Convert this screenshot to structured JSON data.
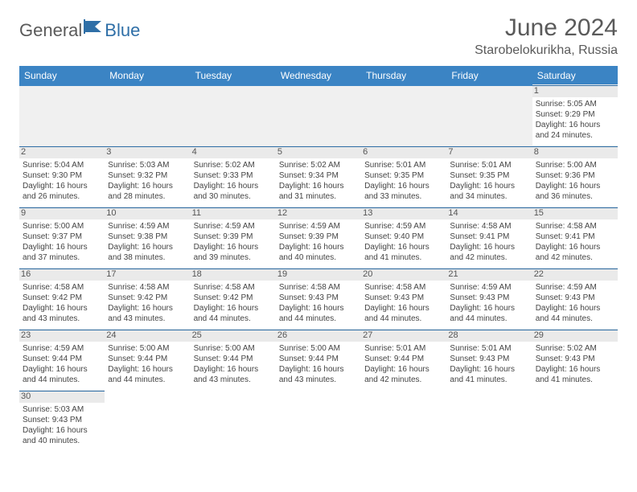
{
  "logo": {
    "text1": "General",
    "text2": "Blue",
    "flag_color": "#2f6fa7"
  },
  "title": "June 2024",
  "location": "Starobelokurikha, Russia",
  "colors": {
    "header_bg": "#3b84c4",
    "header_text": "#ffffff",
    "border": "#2f6fa7",
    "daynum_bg": "#eaeaea",
    "text": "#444444"
  },
  "weekdays": [
    "Sunday",
    "Monday",
    "Tuesday",
    "Wednesday",
    "Thursday",
    "Friday",
    "Saturday"
  ],
  "weeks": [
    [
      null,
      null,
      null,
      null,
      null,
      null,
      {
        "n": "1",
        "sr": "Sunrise: 5:05 AM",
        "ss": "Sunset: 9:29 PM",
        "d1": "Daylight: 16 hours",
        "d2": "and 24 minutes."
      }
    ],
    [
      {
        "n": "2",
        "sr": "Sunrise: 5:04 AM",
        "ss": "Sunset: 9:30 PM",
        "d1": "Daylight: 16 hours",
        "d2": "and 26 minutes."
      },
      {
        "n": "3",
        "sr": "Sunrise: 5:03 AM",
        "ss": "Sunset: 9:32 PM",
        "d1": "Daylight: 16 hours",
        "d2": "and 28 minutes."
      },
      {
        "n": "4",
        "sr": "Sunrise: 5:02 AM",
        "ss": "Sunset: 9:33 PM",
        "d1": "Daylight: 16 hours",
        "d2": "and 30 minutes."
      },
      {
        "n": "5",
        "sr": "Sunrise: 5:02 AM",
        "ss": "Sunset: 9:34 PM",
        "d1": "Daylight: 16 hours",
        "d2": "and 31 minutes."
      },
      {
        "n": "6",
        "sr": "Sunrise: 5:01 AM",
        "ss": "Sunset: 9:35 PM",
        "d1": "Daylight: 16 hours",
        "d2": "and 33 minutes."
      },
      {
        "n": "7",
        "sr": "Sunrise: 5:01 AM",
        "ss": "Sunset: 9:35 PM",
        "d1": "Daylight: 16 hours",
        "d2": "and 34 minutes."
      },
      {
        "n": "8",
        "sr": "Sunrise: 5:00 AM",
        "ss": "Sunset: 9:36 PM",
        "d1": "Daylight: 16 hours",
        "d2": "and 36 minutes."
      }
    ],
    [
      {
        "n": "9",
        "sr": "Sunrise: 5:00 AM",
        "ss": "Sunset: 9:37 PM",
        "d1": "Daylight: 16 hours",
        "d2": "and 37 minutes."
      },
      {
        "n": "10",
        "sr": "Sunrise: 4:59 AM",
        "ss": "Sunset: 9:38 PM",
        "d1": "Daylight: 16 hours",
        "d2": "and 38 minutes."
      },
      {
        "n": "11",
        "sr": "Sunrise: 4:59 AM",
        "ss": "Sunset: 9:39 PM",
        "d1": "Daylight: 16 hours",
        "d2": "and 39 minutes."
      },
      {
        "n": "12",
        "sr": "Sunrise: 4:59 AM",
        "ss": "Sunset: 9:39 PM",
        "d1": "Daylight: 16 hours",
        "d2": "and 40 minutes."
      },
      {
        "n": "13",
        "sr": "Sunrise: 4:59 AM",
        "ss": "Sunset: 9:40 PM",
        "d1": "Daylight: 16 hours",
        "d2": "and 41 minutes."
      },
      {
        "n": "14",
        "sr": "Sunrise: 4:58 AM",
        "ss": "Sunset: 9:41 PM",
        "d1": "Daylight: 16 hours",
        "d2": "and 42 minutes."
      },
      {
        "n": "15",
        "sr": "Sunrise: 4:58 AM",
        "ss": "Sunset: 9:41 PM",
        "d1": "Daylight: 16 hours",
        "d2": "and 42 minutes."
      }
    ],
    [
      {
        "n": "16",
        "sr": "Sunrise: 4:58 AM",
        "ss": "Sunset: 9:42 PM",
        "d1": "Daylight: 16 hours",
        "d2": "and 43 minutes."
      },
      {
        "n": "17",
        "sr": "Sunrise: 4:58 AM",
        "ss": "Sunset: 9:42 PM",
        "d1": "Daylight: 16 hours",
        "d2": "and 43 minutes."
      },
      {
        "n": "18",
        "sr": "Sunrise: 4:58 AM",
        "ss": "Sunset: 9:42 PM",
        "d1": "Daylight: 16 hours",
        "d2": "and 44 minutes."
      },
      {
        "n": "19",
        "sr": "Sunrise: 4:58 AM",
        "ss": "Sunset: 9:43 PM",
        "d1": "Daylight: 16 hours",
        "d2": "and 44 minutes."
      },
      {
        "n": "20",
        "sr": "Sunrise: 4:58 AM",
        "ss": "Sunset: 9:43 PM",
        "d1": "Daylight: 16 hours",
        "d2": "and 44 minutes."
      },
      {
        "n": "21",
        "sr": "Sunrise: 4:59 AM",
        "ss": "Sunset: 9:43 PM",
        "d1": "Daylight: 16 hours",
        "d2": "and 44 minutes."
      },
      {
        "n": "22",
        "sr": "Sunrise: 4:59 AM",
        "ss": "Sunset: 9:43 PM",
        "d1": "Daylight: 16 hours",
        "d2": "and 44 minutes."
      }
    ],
    [
      {
        "n": "23",
        "sr": "Sunrise: 4:59 AM",
        "ss": "Sunset: 9:44 PM",
        "d1": "Daylight: 16 hours",
        "d2": "and 44 minutes."
      },
      {
        "n": "24",
        "sr": "Sunrise: 5:00 AM",
        "ss": "Sunset: 9:44 PM",
        "d1": "Daylight: 16 hours",
        "d2": "and 44 minutes."
      },
      {
        "n": "25",
        "sr": "Sunrise: 5:00 AM",
        "ss": "Sunset: 9:44 PM",
        "d1": "Daylight: 16 hours",
        "d2": "and 43 minutes."
      },
      {
        "n": "26",
        "sr": "Sunrise: 5:00 AM",
        "ss": "Sunset: 9:44 PM",
        "d1": "Daylight: 16 hours",
        "d2": "and 43 minutes."
      },
      {
        "n": "27",
        "sr": "Sunrise: 5:01 AM",
        "ss": "Sunset: 9:44 PM",
        "d1": "Daylight: 16 hours",
        "d2": "and 42 minutes."
      },
      {
        "n": "28",
        "sr": "Sunrise: 5:01 AM",
        "ss": "Sunset: 9:43 PM",
        "d1": "Daylight: 16 hours",
        "d2": "and 41 minutes."
      },
      {
        "n": "29",
        "sr": "Sunrise: 5:02 AM",
        "ss": "Sunset: 9:43 PM",
        "d1": "Daylight: 16 hours",
        "d2": "and 41 minutes."
      }
    ],
    [
      {
        "n": "30",
        "sr": "Sunrise: 5:03 AM",
        "ss": "Sunset: 9:43 PM",
        "d1": "Daylight: 16 hours",
        "d2": "and 40 minutes."
      },
      null,
      null,
      null,
      null,
      null,
      null
    ]
  ]
}
